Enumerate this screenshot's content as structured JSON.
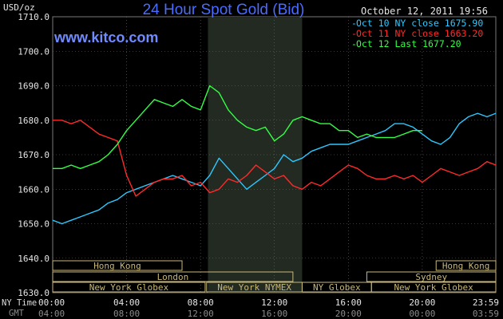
{
  "header": {
    "title": "24 Hour Spot Gold (Bid)",
    "date_stamp": "October 12, 2011 19:56",
    "watermark": "www.kitco.com",
    "unit": "USD/oz"
  },
  "colors": {
    "background": "#000000",
    "title": "#4a6cff",
    "grid": "#6e6e6e",
    "session_band": "#222a22",
    "series_oct10": "#2ec8ff",
    "series_oct11": "#ff2a2a",
    "series_oct12": "#33ff44",
    "market_bar": "#c8b878"
  },
  "time_rows": {
    "ny_label": "NY Time",
    "gmt_label": "GMT"
  },
  "markets": [
    {
      "name": "Hong Kong",
      "start": 0.0,
      "end": 7.0,
      "row": 0
    },
    {
      "name": "Hong Kong",
      "start": 20.75,
      "end": 23.98,
      "row": 0
    },
    {
      "name": "London",
      "start": 0.0,
      "end": 13.0,
      "row": 1
    },
    {
      "name": "Sydney",
      "start": 17.0,
      "end": 23.98,
      "row": 1
    },
    {
      "name": "New York Globex",
      "start": 0.0,
      "end": 8.25,
      "row": 2
    },
    {
      "name": "New York NYMEX",
      "start": 8.33,
      "end": 13.5,
      "row": 2
    },
    {
      "name": "NY Globex",
      "start": 13.5,
      "end": 17.25,
      "row": 2
    },
    {
      "name": "New York Globex",
      "start": 17.25,
      "end": 23.98,
      "row": 2
    }
  ],
  "chart_data": {
    "type": "line",
    "title": "24 Hour Spot Gold (Bid)",
    "ylabel": "USD/oz",
    "xlim": [
      0,
      23.98
    ],
    "ylim": [
      1630,
      1710
    ],
    "y_ticks": [
      "1710.0",
      "1700.0",
      "1690.0",
      "1680.0",
      "1670.0",
      "1660.0",
      "1650.0",
      "1640.0",
      "1630.0"
    ],
    "x_ticks_ny": [
      "00:00",
      "04:00",
      "08:00",
      "12:00",
      "16:00",
      "20:00",
      "23:59"
    ],
    "x_ticks_gmt": [
      "04:00",
      "08:00",
      "12:00",
      "16:00",
      "20:00",
      "00:00",
      "03:59"
    ],
    "grid": true,
    "session_shade": [
      8.4,
      13.5
    ],
    "legend_position": "top-right",
    "series": [
      {
        "name": "Oct 10 NY close 1675.90",
        "x": [
          0,
          0.5,
          1.0,
          1.5,
          2.0,
          2.5,
          3.0,
          3.5,
          4.0,
          4.5,
          5.0,
          5.5,
          6.0,
          6.5,
          7.0,
          7.5,
          8.0,
          8.5,
          9.0,
          9.5,
          10.0,
          10.5,
          11.0,
          11.5,
          12.0,
          12.5,
          13.0,
          13.5,
          14.0,
          14.5,
          15.0,
          15.5,
          16.0,
          16.5,
          17.0,
          17.5,
          18.0,
          18.5,
          19.0,
          19.5,
          20.0,
          20.5,
          21.0,
          21.5,
          22.0,
          22.5,
          23.0,
          23.5,
          23.98
        ],
        "values": [
          1651,
          1650,
          1651,
          1652,
          1653,
          1654,
          1656,
          1657,
          1659,
          1660,
          1661,
          1662,
          1663,
          1664,
          1663,
          1662,
          1661,
          1664,
          1669,
          1666,
          1663,
          1660,
          1662,
          1664,
          1666,
          1670,
          1668,
          1669,
          1671,
          1672,
          1673,
          1673,
          1673,
          1674,
          1675,
          1676,
          1677,
          1679,
          1679,
          1678,
          1676,
          1674,
          1673,
          1675,
          1679,
          1681,
          1682,
          1681,
          1682
        ]
      },
      {
        "name": "Oct 11 NY close 1663.20",
        "x": [
          0,
          0.5,
          1.0,
          1.5,
          2.0,
          2.5,
          3.0,
          3.5,
          4.0,
          4.5,
          5.0,
          5.5,
          6.0,
          6.5,
          7.0,
          7.5,
          8.0,
          8.5,
          9.0,
          9.5,
          10.0,
          10.5,
          11.0,
          11.5,
          12.0,
          12.5,
          13.0,
          13.5,
          14.0,
          14.5,
          15.0,
          15.5,
          16.0,
          16.5,
          17.0,
          17.5,
          18.0,
          18.5,
          19.0,
          19.5,
          20.0,
          20.5,
          21.0,
          21.5,
          22.0,
          22.5,
          23.0,
          23.5,
          23.98
        ],
        "values": [
          1680,
          1680,
          1679,
          1680,
          1678,
          1676,
          1675,
          1674,
          1664,
          1658,
          1660,
          1662,
          1663,
          1663,
          1664,
          1661,
          1662,
          1659,
          1660,
          1663,
          1662,
          1664,
          1667,
          1665,
          1663,
          1664,
          1661,
          1660,
          1662,
          1661,
          1663,
          1665,
          1667,
          1666,
          1664,
          1663,
          1663,
          1664,
          1663,
          1664,
          1662,
          1664,
          1666,
          1665,
          1664,
          1665,
          1666,
          1668,
          1667
        ]
      },
      {
        "name": "Oct 12 Last 1677.20",
        "x": [
          0,
          0.5,
          1.0,
          1.5,
          2.0,
          2.5,
          3.0,
          3.5,
          4.0,
          4.5,
          5.0,
          5.5,
          6.0,
          6.5,
          7.0,
          7.5,
          8.0,
          8.5,
          9.0,
          9.5,
          10.0,
          10.5,
          11.0,
          11.5,
          12.0,
          12.5,
          13.0,
          13.5,
          14.0,
          14.5,
          15.0,
          15.5,
          16.0,
          16.5,
          17.0,
          17.5,
          18.0,
          18.5,
          19.0,
          19.5,
          20.0
        ],
        "values": [
          1666,
          1666,
          1667,
          1666,
          1667,
          1668,
          1670,
          1673,
          1677,
          1680,
          1683,
          1686,
          1685,
          1684,
          1686,
          1684,
          1683,
          1690,
          1688,
          1683,
          1680,
          1678,
          1677,
          1678,
          1674,
          1676,
          1680,
          1681,
          1680,
          1679,
          1679,
          1677,
          1677,
          1675,
          1676,
          1675,
          1675,
          1675,
          1676,
          1677,
          1677
        ]
      }
    ]
  }
}
